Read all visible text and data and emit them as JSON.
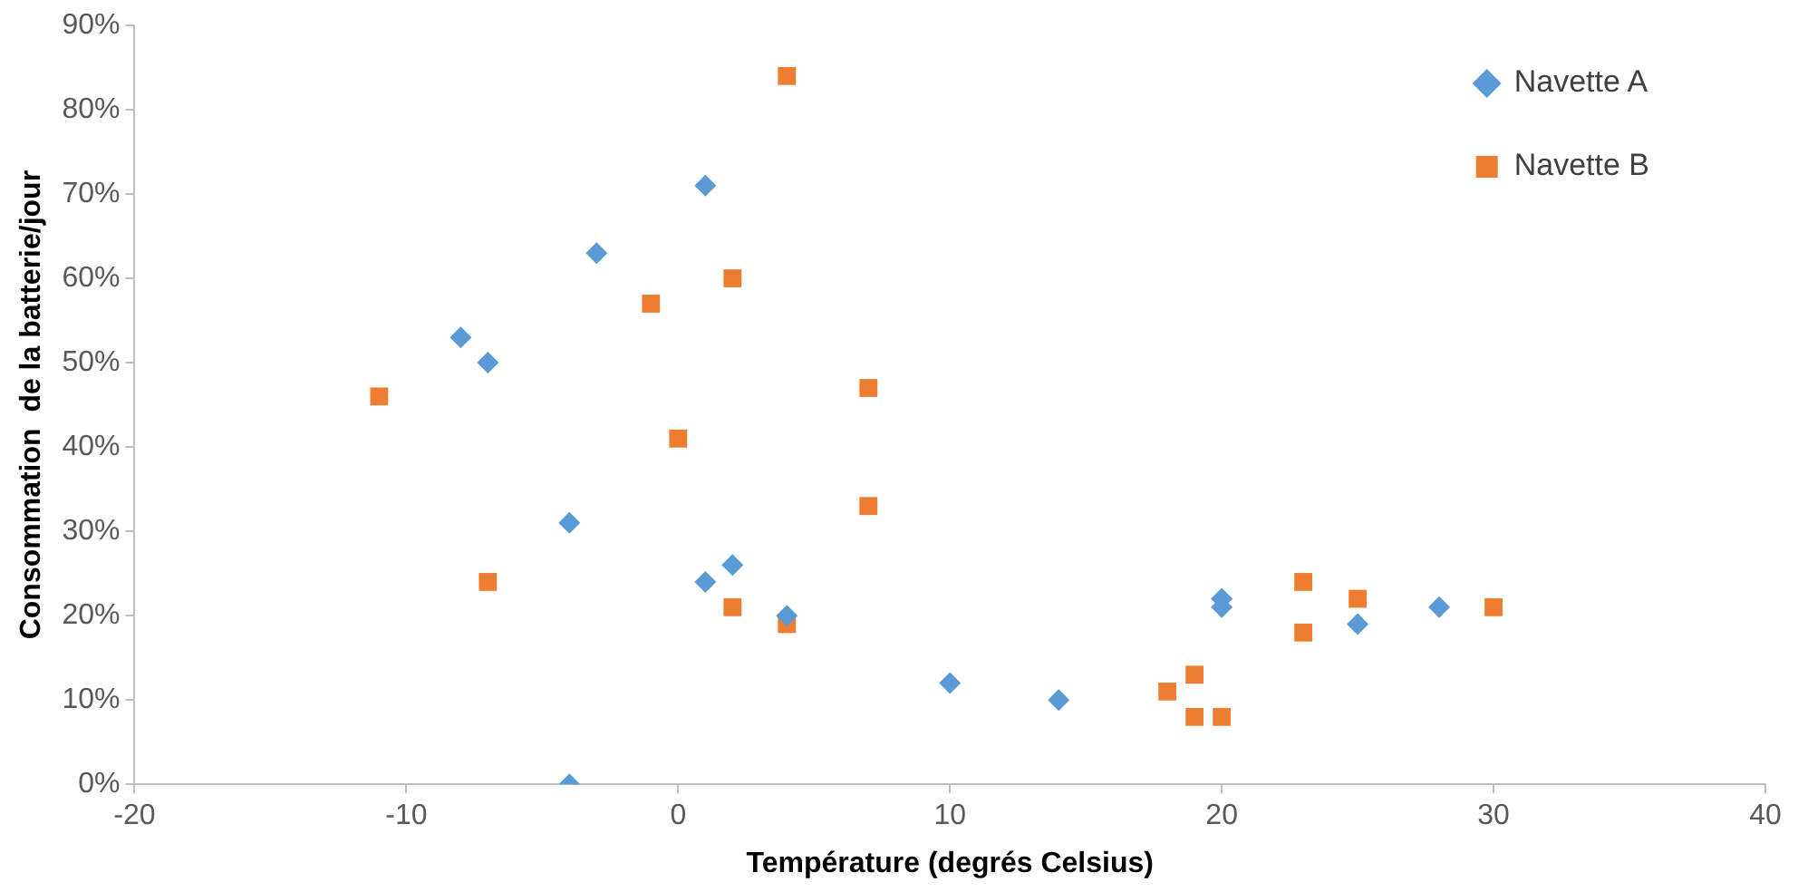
{
  "chart_data": {
    "type": "scatter",
    "xlabel": "Température (degrés Celsius)",
    "ylabel": "Consommation  de la batterie/jour",
    "xlim": [
      -20,
      40
    ],
    "xticks": [
      -20,
      -10,
      0,
      10,
      20,
      30,
      40
    ],
    "ylim": [
      0,
      90
    ],
    "yticks": [
      {
        "value": 0,
        "label": "0%"
      },
      {
        "value": 10,
        "label": "10%"
      },
      {
        "value": 20,
        "label": "20%"
      },
      {
        "value": 30,
        "label": "30%"
      },
      {
        "value": 40,
        "label": "40%"
      },
      {
        "value": 50,
        "label": "50%"
      },
      {
        "value": 60,
        "label": "60%"
      },
      {
        "value": 70,
        "label": "70%"
      },
      {
        "value": 80,
        "label": "80%"
      },
      {
        "value": 90,
        "label": "90%"
      }
    ],
    "grid": false,
    "legend": "top right",
    "series": [
      {
        "name": "Navette A",
        "color": "#5b9bd5",
        "marker": "diamond",
        "x": [
          -8,
          -7,
          -3,
          1,
          -4,
          -4,
          1,
          2,
          4,
          10,
          14,
          20,
          20,
          25,
          28
        ],
        "values": [
          53,
          50,
          63,
          71,
          31,
          0,
          24,
          26,
          20,
          12,
          10,
          22,
          21,
          19,
          21
        ]
      },
      {
        "name": "Navette B",
        "color": "#ed7d31",
        "marker": "square",
        "x": [
          4,
          -1,
          2,
          -11,
          0,
          7,
          7,
          -7,
          2,
          4,
          18,
          19,
          19,
          20,
          23,
          23,
          25,
          30
        ],
        "values": [
          84,
          57,
          60,
          46,
          41,
          47,
          33,
          24,
          21,
          19,
          11,
          13,
          8,
          8,
          24,
          18,
          22,
          21
        ]
      }
    ]
  }
}
